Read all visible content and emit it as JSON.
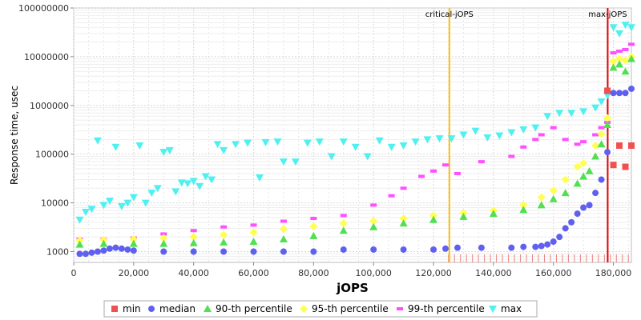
{
  "chart_data": {
    "type": "scatter",
    "xlabel": "jOPS",
    "ylabel": "Response time, usec",
    "x_scale": "linear",
    "y_scale": "log",
    "xlim": [
      0,
      186000
    ],
    "ylim": [
      600,
      100000000
    ],
    "x_ticks": [
      {
        "value": 0,
        "label": "0"
      },
      {
        "value": 20000,
        "label": "20,000"
      },
      {
        "value": 40000,
        "label": "40,000"
      },
      {
        "value": 60000,
        "label": "60,000"
      },
      {
        "value": 80000,
        "label": "80,000"
      },
      {
        "value": 100000,
        "label": "100,000"
      },
      {
        "value": 120000,
        "label": "120,000"
      },
      {
        "value": 140000,
        "label": "140,000"
      },
      {
        "value": 160000,
        "label": "160,000"
      },
      {
        "value": 180000,
        "label": "180,000"
      }
    ],
    "y_ticks": [
      {
        "value": 1000,
        "label": "1000"
      },
      {
        "value": 10000,
        "label": "10000"
      },
      {
        "value": 100000,
        "label": "100000"
      },
      {
        "value": 1000000,
        "label": "1000000"
      },
      {
        "value": 10000000,
        "label": "10000000"
      },
      {
        "value": 100000000,
        "label": "100000000"
      }
    ],
    "grid": true,
    "legend_position": "bottom",
    "vertical_lines": [
      {
        "label": "critical-jOPS",
        "x": 125300,
        "color": "#ffc000"
      },
      {
        "label": "max-jOPS",
        "x": 178100,
        "color": "#e00000"
      }
    ],
    "series": [
      {
        "name": "min",
        "color": "#f05050",
        "marker": "square",
        "x": [
          178000,
          180000,
          182000,
          184000,
          186000
        ],
        "y": [
          2000000,
          60000,
          150000,
          55000,
          150000
        ]
      },
      {
        "name": "median",
        "color": "#6060f0",
        "marker": "circle",
        "x": [
          2000,
          4000,
          6000,
          8000,
          10000,
          12000,
          14000,
          16000,
          18000,
          20000,
          30000,
          40000,
          50000,
          60000,
          70000,
          80000,
          90000,
          100000,
          110000,
          120000,
          124000,
          128000,
          136000,
          146000,
          150000,
          154000,
          156000,
          158000,
          160000,
          162000,
          164000,
          166000,
          168000,
          170000,
          172000,
          174000,
          176000,
          178000,
          180000,
          182000,
          184000,
          186000
        ],
        "y": [
          900,
          900,
          950,
          1000,
          1050,
          1150,
          1200,
          1150,
          1100,
          1050,
          1000,
          1000,
          1000,
          1000,
          1000,
          1000,
          1100,
          1100,
          1100,
          1100,
          1150,
          1200,
          1200,
          1200,
          1250,
          1250,
          1300,
          1400,
          1600,
          2000,
          3000,
          4000,
          6000,
          8000,
          9000,
          16000,
          30000,
          110000,
          1800000,
          1800000,
          1800000,
          2200000
        ]
      },
      {
        "name": "90-th percentile",
        "color": "#50e050",
        "marker": "triangle-up",
        "x": [
          2000,
          10000,
          20000,
          30000,
          40000,
          50000,
          60000,
          70000,
          80000,
          90000,
          100000,
          110000,
          120000,
          130000,
          140000,
          150000,
          156000,
          160000,
          164000,
          168000,
          170000,
          172000,
          174000,
          176000,
          178000,
          180000,
          182000,
          184000,
          186000
        ],
        "y": [
          1400,
          1450,
          1450,
          1450,
          1500,
          1550,
          1600,
          1800,
          2100,
          2700,
          3200,
          3800,
          4500,
          5200,
          6000,
          7200,
          9000,
          12000,
          16000,
          25000,
          35000,
          45000,
          90000,
          160000,
          400000,
          6000000,
          7000000,
          5000000,
          9000000
        ]
      },
      {
        "name": "95-th percentile",
        "color": "#ffff50",
        "marker": "diamond",
        "x": [
          2000,
          10000,
          20000,
          30000,
          40000,
          50000,
          60000,
          70000,
          80000,
          90000,
          100000,
          110000,
          120000,
          130000,
          140000,
          150000,
          156000,
          160000,
          164000,
          168000,
          170000,
          174000,
          176000,
          178000,
          180000,
          182000,
          184000,
          186000
        ],
        "y": [
          1700,
          1750,
          1800,
          1900,
          2000,
          2200,
          2500,
          2900,
          3300,
          3800,
          4200,
          4800,
          5500,
          6200,
          7000,
          9000,
          13000,
          18000,
          30000,
          55000,
          65000,
          150000,
          260000,
          550000,
          8000000,
          9000000,
          8500000,
          10000000
        ]
      },
      {
        "name": "99-th percentile",
        "color": "#ff50ff",
        "marker": "dash",
        "x": [
          2000,
          10000,
          20000,
          30000,
          40000,
          50000,
          60000,
          70000,
          80000,
          90000,
          100000,
          106000,
          110000,
          116000,
          120000,
          124000,
          128000,
          136000,
          146000,
          150000,
          154000,
          156000,
          160000,
          164000,
          168000,
          170000,
          174000,
          176000,
          178000,
          180000,
          182000,
          184000,
          186000
        ],
        "y": [
          1800,
          1800,
          1900,
          2300,
          2700,
          3200,
          3500,
          4200,
          4800,
          5500,
          9000,
          14000,
          20000,
          35000,
          45000,
          60000,
          40000,
          70000,
          90000,
          140000,
          200000,
          250000,
          350000,
          200000,
          160000,
          180000,
          250000,
          350000,
          450000,
          12000000,
          13000000,
          14000000,
          18000000
        ]
      },
      {
        "name": "max",
        "color": "#50f0f0",
        "marker": "triangle-down",
        "x": [
          2000,
          4000,
          6000,
          8000,
          10000,
          12000,
          14000,
          16000,
          18000,
          20000,
          22000,
          24000,
          26000,
          28000,
          30000,
          32000,
          34000,
          36000,
          38000,
          40000,
          42000,
          44000,
          46000,
          48000,
          50000,
          54000,
          58000,
          62000,
          64000,
          68000,
          70000,
          74000,
          78000,
          82000,
          86000,
          90000,
          94000,
          98000,
          102000,
          106000,
          110000,
          114000,
          118000,
          122000,
          126000,
          130000,
          134000,
          138000,
          142000,
          146000,
          150000,
          154000,
          158000,
          162000,
          166000,
          170000,
          174000,
          176000,
          178000,
          180000,
          182000,
          184000,
          186000
        ],
        "y": [
          4500,
          6500,
          7500,
          190000,
          9000,
          11000,
          140000,
          8500,
          10000,
          13000,
          150000,
          10000,
          16000,
          20000,
          110000,
          120000,
          17000,
          26000,
          25000,
          28000,
          22000,
          35000,
          30000,
          160000,
          120000,
          160000,
          170000,
          33000,
          175000,
          180000,
          70000,
          70000,
          170000,
          180000,
          90000,
          180000,
          140000,
          90000,
          190000,
          140000,
          150000,
          180000,
          200000,
          210000,
          210000,
          250000,
          300000,
          220000,
          240000,
          280000,
          320000,
          350000,
          600000,
          700000,
          700000,
          750000,
          900000,
          1200000,
          1600000,
          40000000,
          30000000,
          45000000,
          40000000
        ]
      }
    ]
  }
}
